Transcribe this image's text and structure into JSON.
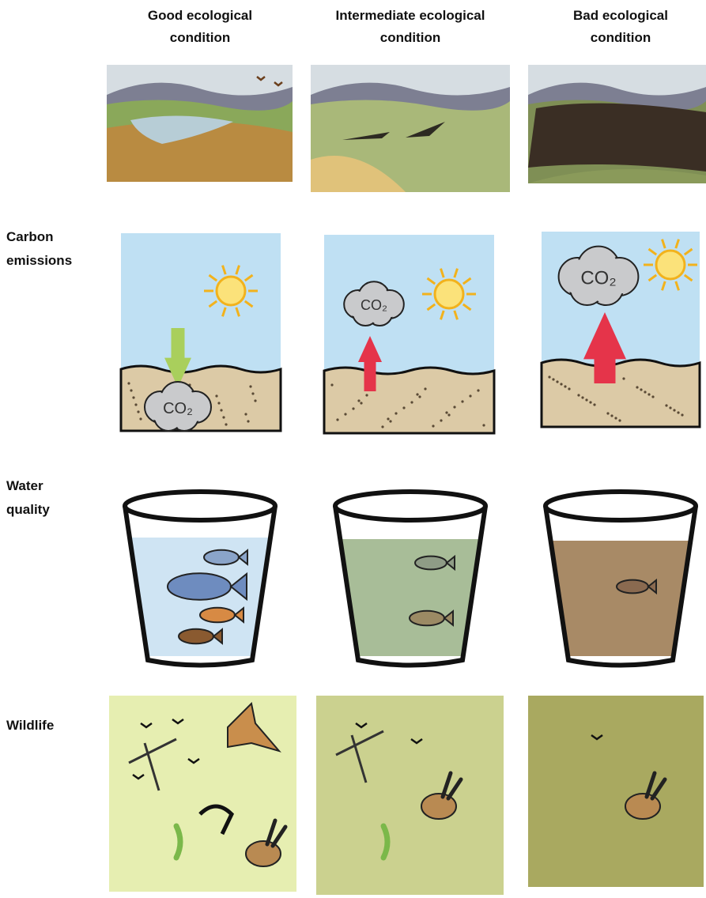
{
  "columns": [
    "Good ecological condition",
    "Intermediate ecological condition",
    "Bad ecological condition"
  ],
  "rows": [
    "Carbon emissions",
    "Water quality",
    "Wildlife"
  ],
  "co2_label": "CO₂"
}
